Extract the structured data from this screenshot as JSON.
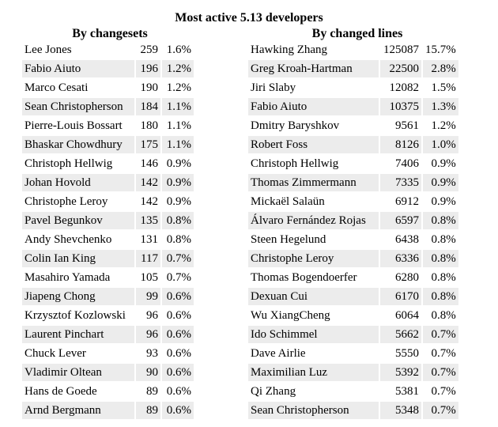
{
  "title": "Most active 5.13 developers",
  "by_changesets": {
    "heading": "By changesets",
    "rows": [
      {
        "name": "Lee Jones",
        "count": "259",
        "pct": "1.6%"
      },
      {
        "name": "Fabio Aiuto",
        "count": "196",
        "pct": "1.2%"
      },
      {
        "name": "Marco Cesati",
        "count": "190",
        "pct": "1.2%"
      },
      {
        "name": "Sean Christopherson",
        "count": "184",
        "pct": "1.1%"
      },
      {
        "name": "Pierre-Louis Bossart",
        "count": "180",
        "pct": "1.1%"
      },
      {
        "name": "Bhaskar Chowdhury",
        "count": "175",
        "pct": "1.1%"
      },
      {
        "name": "Christoph Hellwig",
        "count": "146",
        "pct": "0.9%"
      },
      {
        "name": "Johan Hovold",
        "count": "142",
        "pct": "0.9%"
      },
      {
        "name": "Christophe Leroy",
        "count": "142",
        "pct": "0.9%"
      },
      {
        "name": "Pavel Begunkov",
        "count": "135",
        "pct": "0.8%"
      },
      {
        "name": "Andy Shevchenko",
        "count": "131",
        "pct": "0.8%"
      },
      {
        "name": "Colin Ian King",
        "count": "117",
        "pct": "0.7%"
      },
      {
        "name": "Masahiro Yamada",
        "count": "105",
        "pct": "0.7%"
      },
      {
        "name": "Jiapeng Chong",
        "count": "99",
        "pct": "0.6%"
      },
      {
        "name": "Krzysztof Kozlowski",
        "count": "96",
        "pct": "0.6%"
      },
      {
        "name": "Laurent Pinchart",
        "count": "96",
        "pct": "0.6%"
      },
      {
        "name": "Chuck Lever",
        "count": "93",
        "pct": "0.6%"
      },
      {
        "name": "Vladimir Oltean",
        "count": "90",
        "pct": "0.6%"
      },
      {
        "name": "Hans de Goede",
        "count": "89",
        "pct": "0.6%"
      },
      {
        "name": "Arnd Bergmann",
        "count": "89",
        "pct": "0.6%"
      }
    ]
  },
  "by_changed_lines": {
    "heading": "By changed lines",
    "rows": [
      {
        "name": "Hawking Zhang",
        "count": "125087",
        "pct": "15.7%"
      },
      {
        "name": "Greg Kroah-Hartman",
        "count": "22500",
        "pct": "2.8%"
      },
      {
        "name": "Jiri Slaby",
        "count": "12082",
        "pct": "1.5%"
      },
      {
        "name": "Fabio Aiuto",
        "count": "10375",
        "pct": "1.3%"
      },
      {
        "name": "Dmitry Baryshkov",
        "count": "9561",
        "pct": "1.2%"
      },
      {
        "name": "Robert Foss",
        "count": "8126",
        "pct": "1.0%"
      },
      {
        "name": "Christoph Hellwig",
        "count": "7406",
        "pct": "0.9%"
      },
      {
        "name": "Thomas Zimmermann",
        "count": "7335",
        "pct": "0.9%"
      },
      {
        "name": "Mickaël Salaün",
        "count": "6912",
        "pct": "0.9%"
      },
      {
        "name": "Álvaro Fernández Rojas",
        "count": "6597",
        "pct": "0.8%"
      },
      {
        "name": "Steen Hegelund",
        "count": "6438",
        "pct": "0.8%"
      },
      {
        "name": "Christophe Leroy",
        "count": "6336",
        "pct": "0.8%"
      },
      {
        "name": "Thomas Bogendoerfer",
        "count": "6280",
        "pct": "0.8%"
      },
      {
        "name": "Dexuan Cui",
        "count": "6170",
        "pct": "0.8%"
      },
      {
        "name": "Wu XiangCheng",
        "count": "6064",
        "pct": "0.8%"
      },
      {
        "name": "Ido Schimmel",
        "count": "5662",
        "pct": "0.7%"
      },
      {
        "name": "Dave Airlie",
        "count": "5550",
        "pct": "0.7%"
      },
      {
        "name": "Maximilian Luz",
        "count": "5392",
        "pct": "0.7%"
      },
      {
        "name": "Qi Zhang",
        "count": "5381",
        "pct": "0.7%"
      },
      {
        "name": "Sean Christopherson",
        "count": "5348",
        "pct": "0.7%"
      }
    ]
  }
}
